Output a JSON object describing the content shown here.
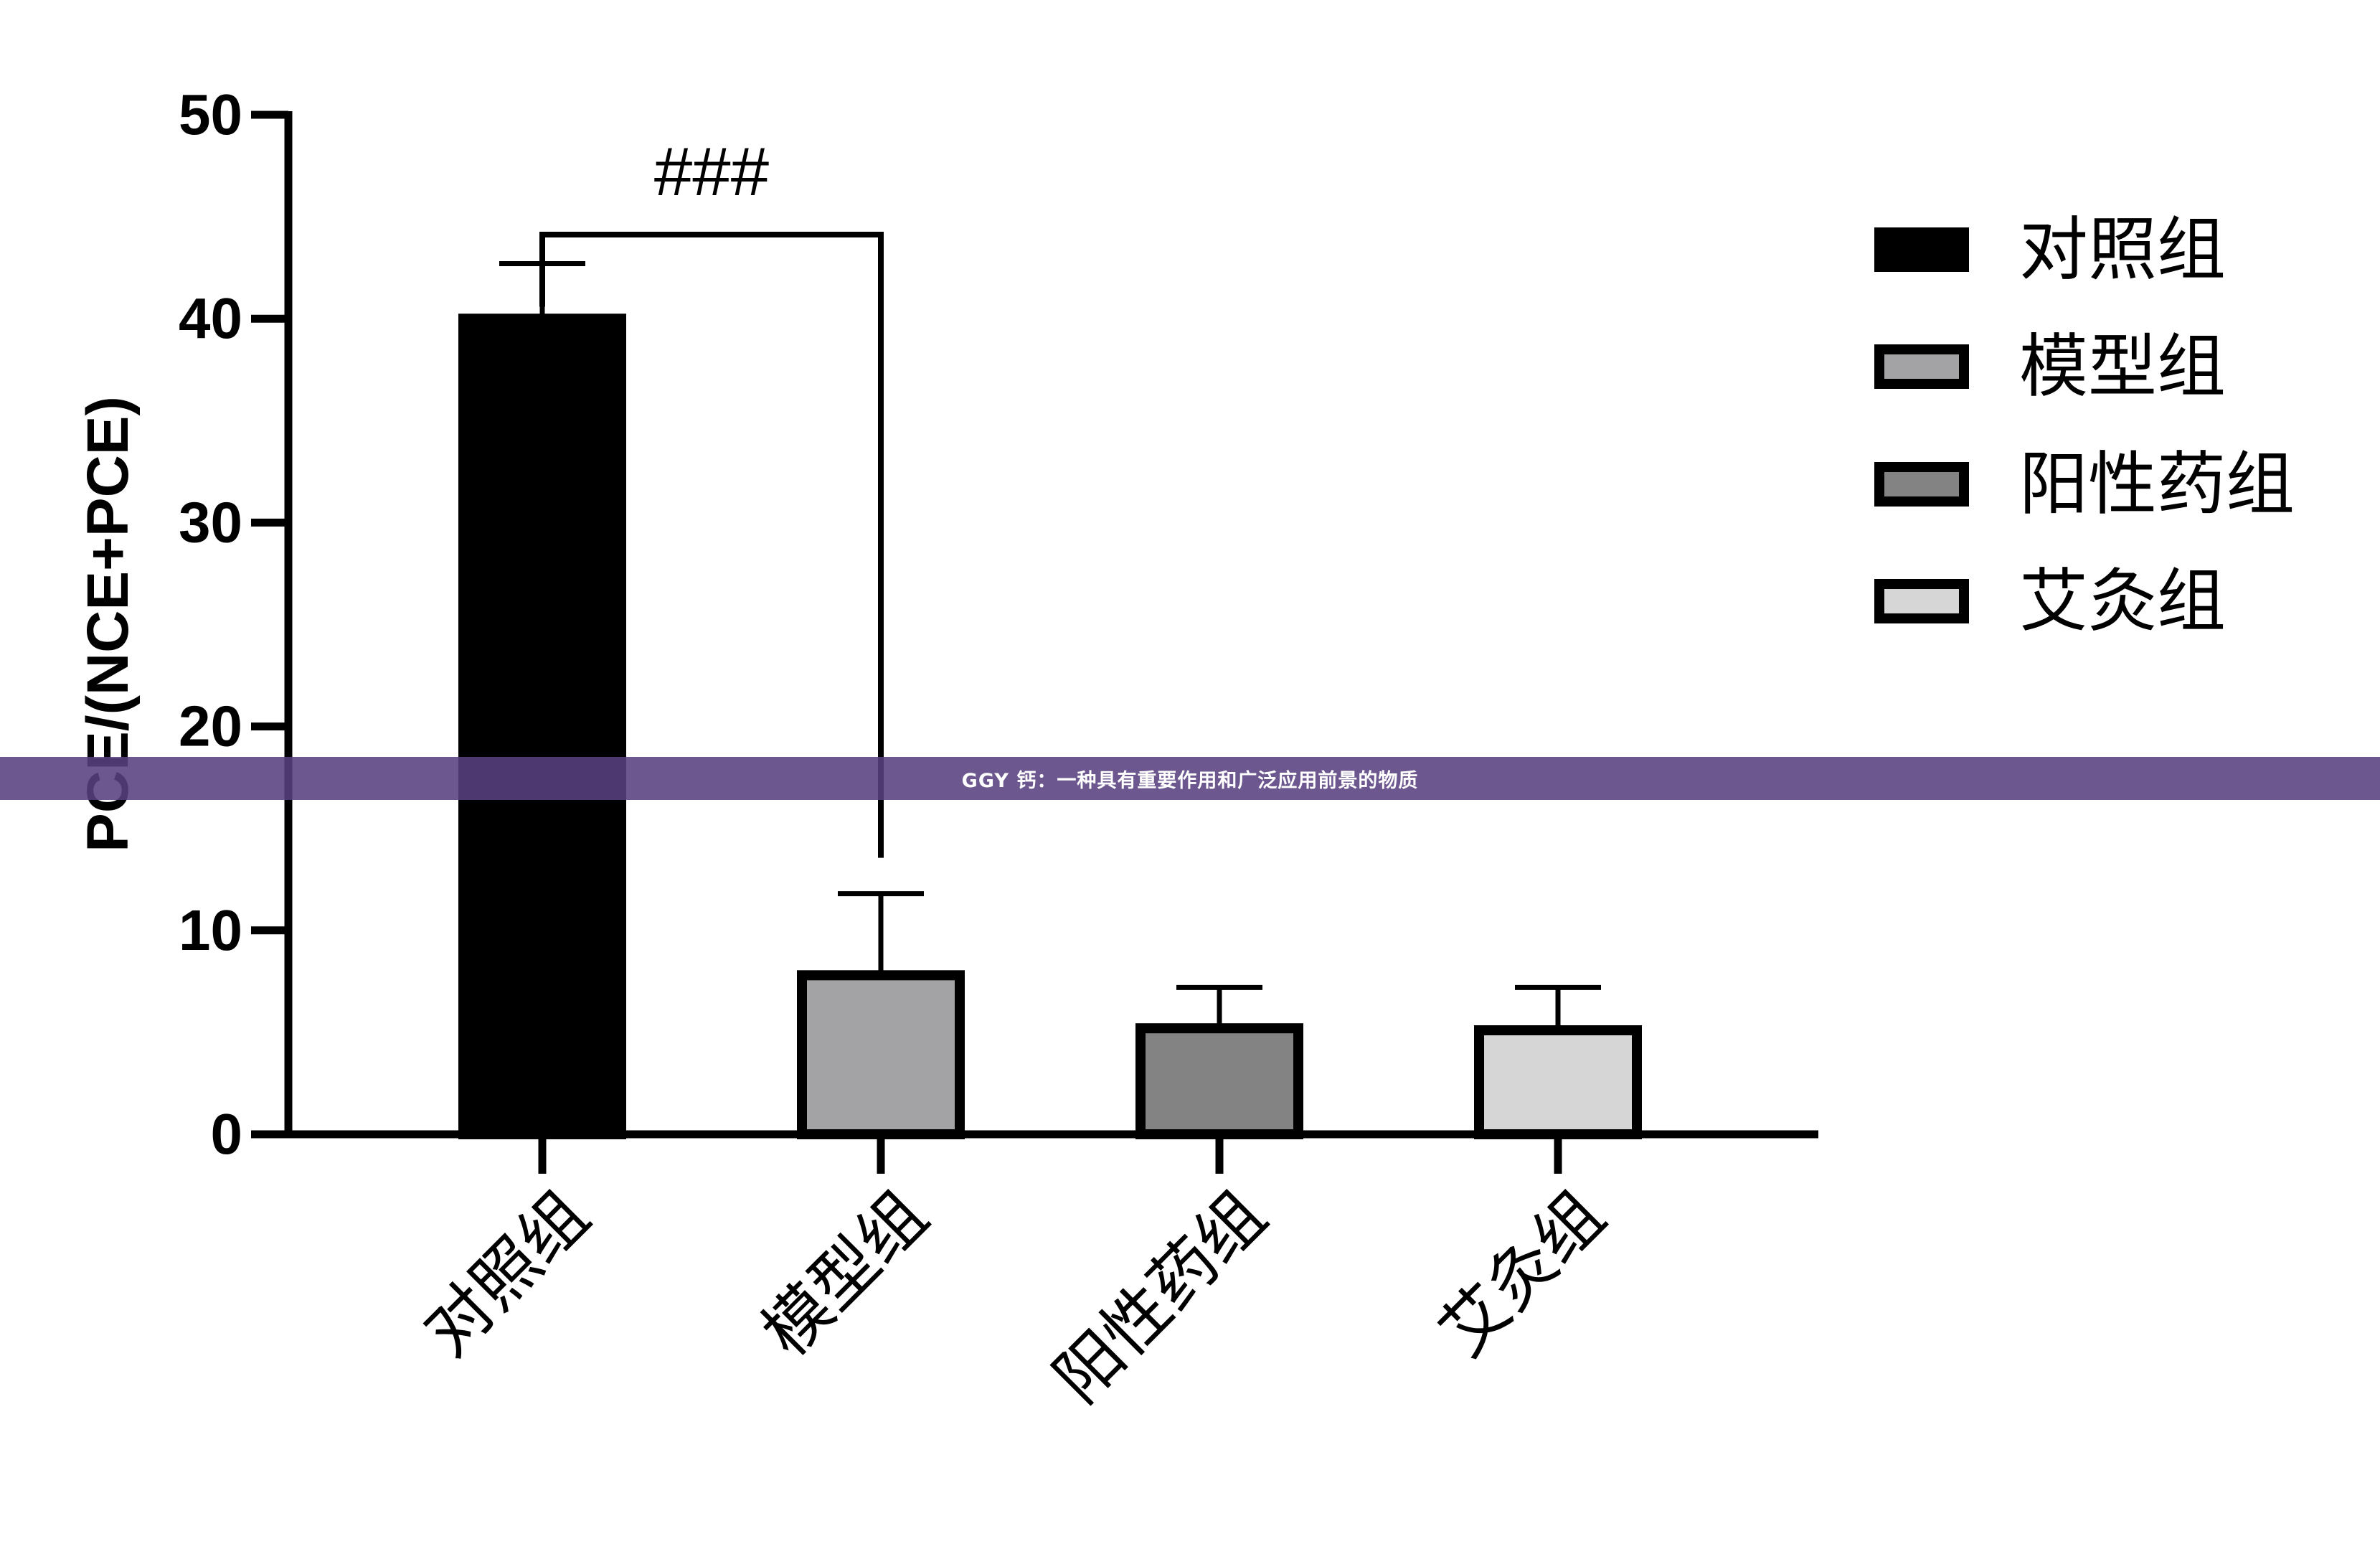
{
  "chart_data": {
    "type": "bar",
    "ylabel": "PCE/(NCE+PCE)",
    "xlabel": "",
    "ylim": [
      0,
      50
    ],
    "yticks": [
      0,
      10,
      20,
      30,
      40,
      50
    ],
    "categories": [
      "对照组",
      "模型组",
      "阳性药组",
      "艾灸组"
    ],
    "values": [
      40,
      7.8,
      5.2,
      5.1
    ],
    "errors": [
      2.7,
      4.0,
      2.0,
      2.1
    ],
    "colors": [
      "#000000",
      "#a3a3a6",
      "#838383",
      "#d6d6d6"
    ],
    "legend": {
      "placement": "right",
      "entries": [
        "对照组",
        "模型组",
        "阳性药组",
        "艾灸组"
      ]
    },
    "annotations": [
      {
        "text": "###",
        "from": "对照组",
        "to": "模型组"
      }
    ],
    "grid": false
  },
  "banner": {
    "text": "GGY 钙：一种具有重要作用和广泛应用前景的物质",
    "color": "#584080"
  }
}
